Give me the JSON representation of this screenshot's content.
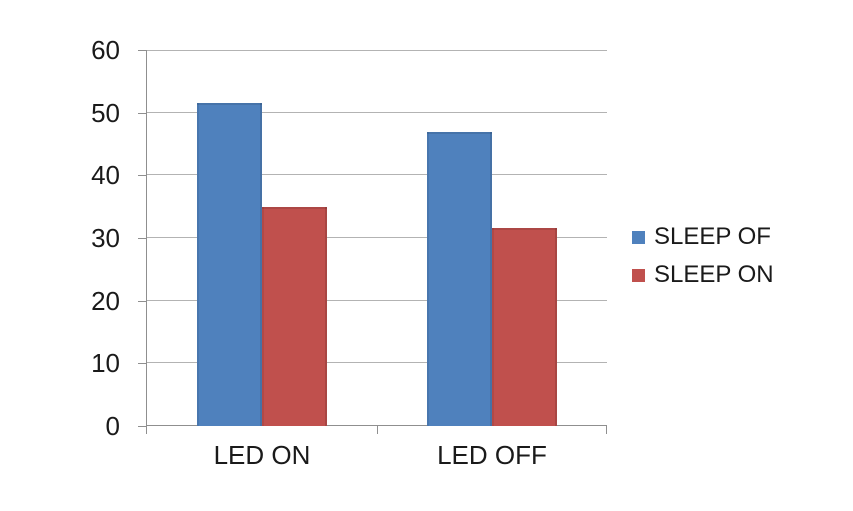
{
  "chart_data": {
    "type": "bar",
    "categories": [
      "LED ON",
      "LED OFF"
    ],
    "series": [
      {
        "name": "SLEEP OF",
        "color": "#4F81BD",
        "values": [
          51.6,
          46.9
        ]
      },
      {
        "name": "SLEEP ON",
        "color": "#C0504D",
        "values": [
          34.9,
          31.6
        ]
      }
    ],
    "title": "",
    "xlabel": "",
    "ylabel": "",
    "ylim": [
      0,
      60
    ],
    "yticks": [
      0,
      10,
      20,
      30,
      40,
      50,
      60
    ],
    "grid": true,
    "legend_position": "right"
  },
  "colors": {
    "background": "#FFFFFF",
    "gridline": "#B3B3B3",
    "axis": "#8F8F8F",
    "text": "#1A1A1A"
  }
}
